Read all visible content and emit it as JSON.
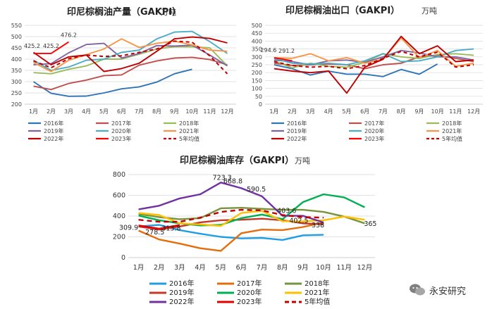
{
  "chart_data": [
    {
      "id": "prod",
      "type": "line",
      "title": "印尼棕榈油产量（GAKPI）",
      "unit": "万吨",
      "categories": [
        "1月",
        "2月",
        "3月",
        "4月",
        "5月",
        "6月",
        "7月",
        "8月",
        "9月",
        "10月",
        "11月",
        "12月"
      ],
      "ylim": [
        200,
        550
      ],
      "yticks": [
        200,
        250,
        300,
        350,
        400,
        450,
        500,
        550
      ],
      "series": [
        {
          "name": "2016年",
          "color": "#2e75b6",
          "dash": false,
          "values": [
            300,
            248,
            235,
            236,
            250,
            268,
            277,
            298,
            335,
            355,
            null,
            null
          ]
        },
        {
          "name": "2017年",
          "color": "#c0504d",
          "dash": false,
          "values": [
            280,
            265,
            292,
            307,
            327,
            330,
            373,
            392,
            405,
            408,
            398,
            375
          ]
        },
        {
          "name": "2018年",
          "color": "#9bbb59",
          "dash": false,
          "values": [
            340,
            335,
            355,
            370,
            400,
            400,
            422,
            445,
            455,
            455,
            450,
            370
          ]
        },
        {
          "name": "2019年",
          "color": "#8064a2",
          "dash": false,
          "values": [
            375,
            380,
            428,
            465,
            470,
            405,
            425,
            460,
            458,
            462,
            418,
            370
          ]
        },
        {
          "name": "2020年",
          "color": "#4bacc6",
          "dash": false,
          "values": [
            395,
            350,
            365,
            395,
            400,
            430,
            440,
            490,
            520,
            523,
            478,
            425
          ]
        },
        {
          "name": "2021年",
          "color": "#f79646",
          "dash": false,
          "values": [
            385,
            345,
            395,
            420,
            445,
            490,
            452,
            470,
            480,
            463,
            440,
            435
          ]
        },
        {
          "name": "2022年",
          "color": "#c00000",
          "dash": false,
          "values": [
            430,
            375,
            410,
            418,
            345,
            358,
            382,
            435,
            490,
            498,
            492,
            472
          ]
        },
        {
          "name": "2023年",
          "color": "#ff0000",
          "dash": false,
          "values": [
            425.2,
            425.2,
            476.2,
            null,
            null,
            null,
            null,
            null,
            null,
            null,
            null,
            null
          ]
        },
        {
          "name": "5年均值",
          "color": "#c00000",
          "dash": true,
          "values": [
            392,
            362,
            402,
            418,
            412,
            415,
            430,
            445,
            480,
            475,
            415,
            335
          ]
        }
      ],
      "data_labels": [
        {
          "series": "2023年",
          "index": 0,
          "text": "425.2"
        },
        {
          "series": "2023年",
          "index": 1,
          "text": "425.2"
        },
        {
          "series": "2023年",
          "index": 2,
          "text": "476.2"
        }
      ]
    },
    {
      "id": "export",
      "type": "line",
      "title": "印尼棕榈油出口（GAKPI）",
      "unit": "万吨",
      "categories": [
        "1月",
        "2月",
        "3月",
        "4月",
        "5月",
        "6月",
        "7月",
        "8月",
        "9月",
        "10月",
        "11月",
        "12月"
      ],
      "ylim": [
        0,
        500
      ],
      "yticks": [
        0,
        50,
        100,
        150,
        200,
        250,
        300,
        350,
        400,
        450,
        500
      ],
      "series": [
        {
          "name": "2016年",
          "color": "#2e75b6",
          "dash": false,
          "values": [
            250,
            225,
            185,
            210,
            190,
            190,
            175,
            220,
            190,
            255,
            null,
            null
          ]
        },
        {
          "name": "2017年",
          "color": "#c0504d",
          "dash": false,
          "values": [
            260,
            245,
            250,
            255,
            250,
            225,
            250,
            260,
            300,
            310,
            290,
            270
          ]
        },
        {
          "name": "2018年",
          "color": "#9bbb59",
          "dash": false,
          "values": [
            275,
            230,
            260,
            240,
            235,
            265,
            320,
            300,
            290,
            315,
            320,
            310
          ]
        },
        {
          "name": "2019年",
          "color": "#8064a2",
          "dash": false,
          "values": [
            280,
            270,
            250,
            275,
            280,
            265,
            300,
            340,
            325,
            300,
            300,
            280
          ]
        },
        {
          "name": "2020年",
          "color": "#4bacc6",
          "dash": false,
          "values": [
            290,
            260,
            255,
            260,
            250,
            275,
            320,
            270,
            275,
            300,
            340,
            350
          ]
        },
        {
          "name": "2021年",
          "color": "#f79646",
          "dash": false,
          "values": [
            294.6,
            291.2,
            320,
            275,
            295,
            260,
            285,
            420,
            295,
            340,
            240,
            260
          ]
        },
        {
          "name": "2022年",
          "color": "#c00000",
          "dash": false,
          "values": [
            225,
            210,
            200,
            210,
            70,
            235,
            285,
            430,
            320,
            370,
            270,
            280
          ]
        },
        {
          "name": "2023年",
          "color": "#ff0000",
          "dash": false,
          "values": [
            294.6,
            275.2,
            null,
            null,
            null,
            null,
            null,
            null,
            null,
            null,
            null,
            null
          ]
        },
        {
          "name": "5年均值",
          "color": "#c00000",
          "dash": true,
          "values": [
            270,
            245,
            235,
            240,
            225,
            245,
            290,
            335,
            300,
            330,
            235,
            250
          ]
        }
      ],
      "data_labels": [
        {
          "series": "2021年",
          "index": 0,
          "text": "294.6"
        },
        {
          "series": "2021年",
          "index": 1,
          "text": "291.2"
        }
      ]
    },
    {
      "id": "stock",
      "type": "line",
      "title": "印尼棕榈油库存（GAKPI）",
      "unit": "万吨",
      "categories": [
        "1月",
        "2月",
        "3月",
        "4月",
        "5月",
        "6月",
        "7月",
        "8月",
        "9月",
        "10月",
        "11月",
        "12月"
      ],
      "ylim": [
        0,
        800
      ],
      "yticks": [
        0,
        200,
        400,
        600,
        800
      ],
      "series": [
        {
          "name": "2016年",
          "color": "#1f9ee3",
          "dash": false,
          "values": [
            300,
            315,
            265,
            230,
            200,
            185,
            190,
            170,
            215,
            220,
            null,
            null
          ]
        },
        {
          "name": "2017年",
          "color": "#e46c0a",
          "dash": false,
          "values": [
            260,
            175,
            135,
            90,
            65,
            235,
            270,
            265,
            295,
            338,
            null,
            null
          ]
        },
        {
          "name": "2018年",
          "color": "#77933c",
          "dash": false,
          "values": [
            420,
            390,
            370,
            380,
            475,
            480,
            470,
            460,
            460,
            440,
            395,
            330
          ]
        },
        {
          "name": "2019年",
          "color": "#c0392b",
          "dash": false,
          "values": [
            300,
            270,
            300,
            340,
            360,
            365,
            375,
            360,
            330,
            320,
            null,
            null
          ]
        },
        {
          "name": "2020年",
          "color": "#00b050",
          "dash": false,
          "values": [
            405,
            360,
            330,
            310,
            315,
            380,
            415,
            370,
            535,
            610,
            580,
            485
          ]
        },
        {
          "name": "2021年",
          "color": "#ffc000",
          "dash": false,
          "values": [
            430,
            410,
            330,
            320,
            305,
            430,
            450,
            350,
            350,
            360,
            395,
            365
          ]
        },
        {
          "name": "2022年",
          "color": "#7030a0",
          "dash": false,
          "values": [
            465,
            500,
            570,
            610,
            723.3,
            668.8,
            590.5,
            403.6,
            402.5,
            338,
            null,
            null
          ]
        },
        {
          "name": "2023年",
          "color": "#e00000",
          "dash": false,
          "values": [
            309.9,
            278.5,
            313.8,
            null,
            null,
            null,
            null,
            null,
            null,
            null,
            null,
            null
          ]
        },
        {
          "name": "5年均值",
          "color": "#c00000",
          "dash": true,
          "values": [
            365,
            345,
            345,
            385,
            440,
            460,
            455,
            410,
            390,
            385,
            null,
            null
          ]
        }
      ],
      "data_labels": [
        {
          "series": "2023年",
          "index": 0,
          "text": "309.9"
        },
        {
          "series": "2023年",
          "index": 1,
          "text": "278.5"
        },
        {
          "series": "2023年",
          "index": 2,
          "text": "313.8"
        },
        {
          "series": "2022年",
          "index": 4,
          "text": "723.3"
        },
        {
          "series": "2022年",
          "index": 5,
          "text": "668.8"
        },
        {
          "series": "2022年",
          "index": 6,
          "text": "590.5"
        },
        {
          "series": "2022年",
          "index": 7,
          "text": "403.6"
        },
        {
          "series": "2022年",
          "index": 8,
          "text": "402.5"
        },
        {
          "series": "2022年",
          "index": 9,
          "text": "338"
        },
        {
          "series": "2021年",
          "index": 11,
          "text": "365"
        }
      ]
    }
  ],
  "watermark": {
    "text": "永安研究",
    "icon": "wechat-icon"
  }
}
